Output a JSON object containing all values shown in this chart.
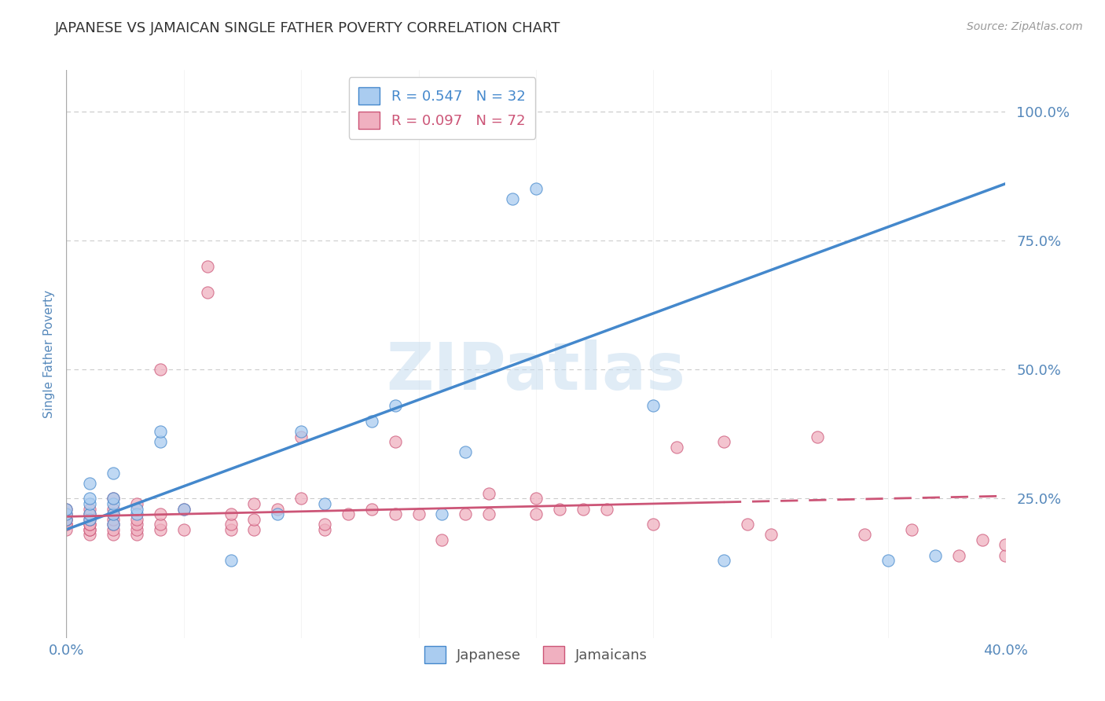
{
  "title": "JAPANESE VS JAMAICAN SINGLE FATHER POVERTY CORRELATION CHART",
  "source": "Source: ZipAtlas.com",
  "ylabel": "Single Father Poverty",
  "ytick_labels": [
    "100.0%",
    "75.0%",
    "50.0%",
    "25.0%"
  ],
  "ytick_values": [
    1.0,
    0.75,
    0.5,
    0.25
  ],
  "xlim": [
    0.0,
    0.4
  ],
  "ylim": [
    -0.02,
    1.08
  ],
  "watermark": "ZIPatlas",
  "japanese_R": 0.547,
  "japanese_N": 32,
  "jamaican_R": 0.097,
  "jamaican_N": 72,
  "japanese_color": "#aaccf0",
  "jamaican_color": "#f0b0c0",
  "line_japanese_color": "#4488cc",
  "line_jamaican_color": "#cc5577",
  "japanese_scatter_x": [
    0.0,
    0.0,
    0.0,
    0.01,
    0.01,
    0.01,
    0.01,
    0.01,
    0.02,
    0.02,
    0.02,
    0.02,
    0.02,
    0.03,
    0.03,
    0.04,
    0.04,
    0.05,
    0.07,
    0.09,
    0.1,
    0.11,
    0.13,
    0.14,
    0.16,
    0.17,
    0.19,
    0.2,
    0.25,
    0.28,
    0.35,
    0.37
  ],
  "japanese_scatter_y": [
    0.21,
    0.22,
    0.23,
    0.21,
    0.22,
    0.24,
    0.25,
    0.28,
    0.2,
    0.22,
    0.24,
    0.25,
    0.3,
    0.22,
    0.23,
    0.36,
    0.38,
    0.23,
    0.13,
    0.22,
    0.38,
    0.24,
    0.4,
    0.43,
    0.22,
    0.34,
    0.83,
    0.85,
    0.43,
    0.13,
    0.13,
    0.14
  ],
  "jamaican_scatter_x": [
    0.0,
    0.0,
    0.0,
    0.0,
    0.0,
    0.0,
    0.0,
    0.01,
    0.01,
    0.01,
    0.01,
    0.01,
    0.01,
    0.01,
    0.01,
    0.02,
    0.02,
    0.02,
    0.02,
    0.02,
    0.02,
    0.02,
    0.03,
    0.03,
    0.03,
    0.03,
    0.03,
    0.04,
    0.04,
    0.04,
    0.04,
    0.05,
    0.05,
    0.06,
    0.06,
    0.07,
    0.07,
    0.07,
    0.08,
    0.08,
    0.08,
    0.09,
    0.1,
    0.1,
    0.11,
    0.11,
    0.12,
    0.13,
    0.14,
    0.14,
    0.15,
    0.16,
    0.17,
    0.18,
    0.18,
    0.2,
    0.2,
    0.21,
    0.22,
    0.23,
    0.25,
    0.26,
    0.28,
    0.29,
    0.3,
    0.32,
    0.34,
    0.36,
    0.38,
    0.39,
    0.4,
    0.4
  ],
  "jamaican_scatter_y": [
    0.19,
    0.2,
    0.2,
    0.21,
    0.21,
    0.22,
    0.23,
    0.18,
    0.19,
    0.19,
    0.2,
    0.2,
    0.21,
    0.22,
    0.23,
    0.18,
    0.19,
    0.2,
    0.21,
    0.22,
    0.23,
    0.25,
    0.18,
    0.19,
    0.2,
    0.21,
    0.24,
    0.19,
    0.2,
    0.22,
    0.5,
    0.19,
    0.23,
    0.65,
    0.7,
    0.19,
    0.2,
    0.22,
    0.19,
    0.21,
    0.24,
    0.23,
    0.25,
    0.37,
    0.19,
    0.2,
    0.22,
    0.23,
    0.22,
    0.36,
    0.22,
    0.17,
    0.22,
    0.22,
    0.26,
    0.22,
    0.25,
    0.23,
    0.23,
    0.23,
    0.2,
    0.35,
    0.36,
    0.2,
    0.18,
    0.37,
    0.18,
    0.19,
    0.14,
    0.17,
    0.14,
    0.16
  ],
  "jap_line_x0": 0.0,
  "jap_line_y0": 0.19,
  "jap_line_x1": 0.4,
  "jap_line_y1": 0.86,
  "jam_line_x0": 0.0,
  "jam_line_y0": 0.215,
  "jam_line_x1": 0.4,
  "jam_line_y1": 0.255,
  "background_color": "#ffffff",
  "grid_color": "#cccccc",
  "tick_label_color": "#5588bb",
  "title_color": "#333333",
  "source_color": "#999999"
}
